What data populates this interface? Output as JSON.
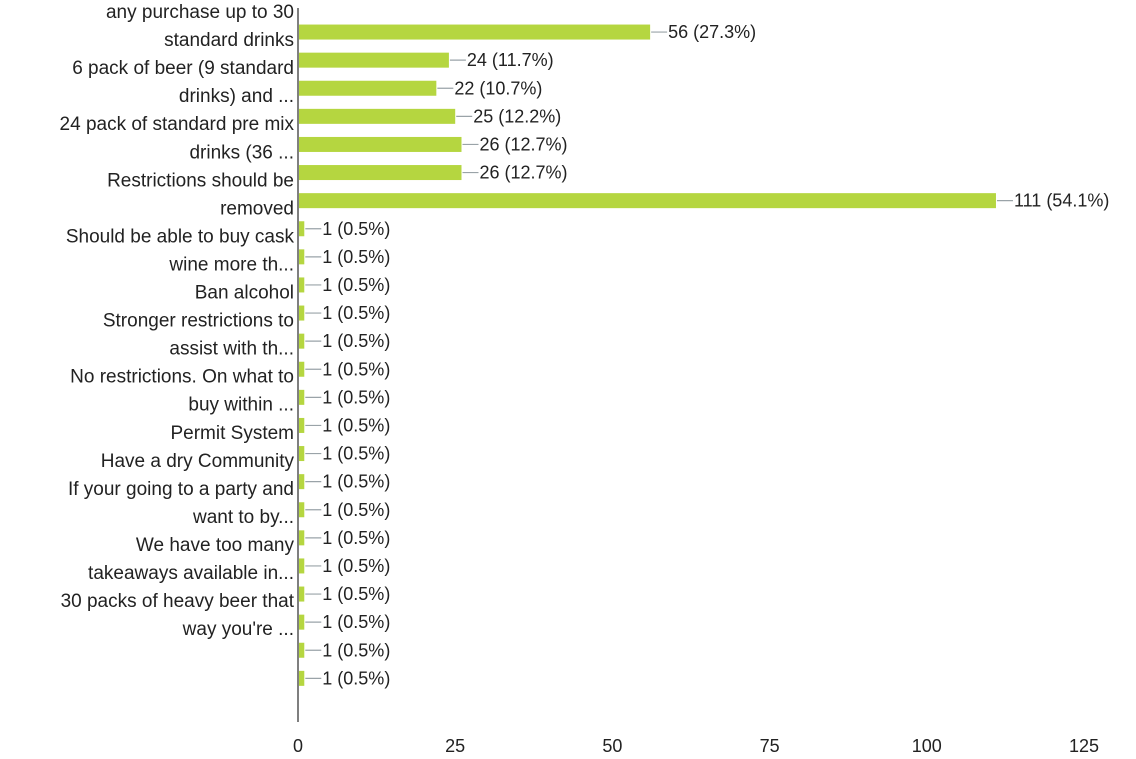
{
  "chart_data": {
    "type": "bar",
    "orientation": "horizontal",
    "title": "",
    "xlabel": "",
    "ylabel": "",
    "xlim": [
      0,
      125
    ],
    "xticks": [
      "0",
      "25",
      "50",
      "75",
      "100",
      "125"
    ],
    "bar_color": "#b5d640",
    "leader_color": "#9aa3a8",
    "grid": false,
    "category_labels": [
      "any purchase up to 30",
      "standard drinks",
      "6 pack of beer (9 standard",
      "drinks) and ...",
      "24 pack of standard pre mix",
      "drinks (36 ...",
      "Restrictions should be",
      "removed",
      "Should be able to buy cask",
      "wine more th...",
      "Ban alcohol",
      "Stronger restrictions to",
      "assist with th...",
      "No restrictions. On what to",
      "buy within ...",
      "Permit System",
      "Have a dry Community",
      "If your going to a party and",
      "want to by...",
      "We have too many",
      "takeaways available in...",
      "30 packs of heavy beer that",
      "way you're ..."
    ],
    "values": [
      56,
      24,
      22,
      25,
      26,
      26,
      111,
      1,
      1,
      1,
      1,
      1,
      1,
      1,
      1,
      1,
      1,
      1,
      1,
      1,
      1,
      1,
      1,
      1
    ],
    "data_labels": [
      "56 (27.3%)",
      "24 (11.7%)",
      "22 (10.7%)",
      "25 (12.2%)",
      "26 (12.7%)",
      "26 (12.7%)",
      "111 (54.1%)",
      "1 (0.5%)",
      "1 (0.5%)",
      "1 (0.5%)",
      "1 (0.5%)",
      "1 (0.5%)",
      "1 (0.5%)",
      "1 (0.5%)",
      "1 (0.5%)",
      "1 (0.5%)",
      "1 (0.5%)",
      "1 (0.5%)",
      "1 (0.5%)",
      "1 (0.5%)",
      "1 (0.5%)",
      "1 (0.5%)",
      "1 (0.5%)",
      "1 (0.5%)"
    ]
  }
}
